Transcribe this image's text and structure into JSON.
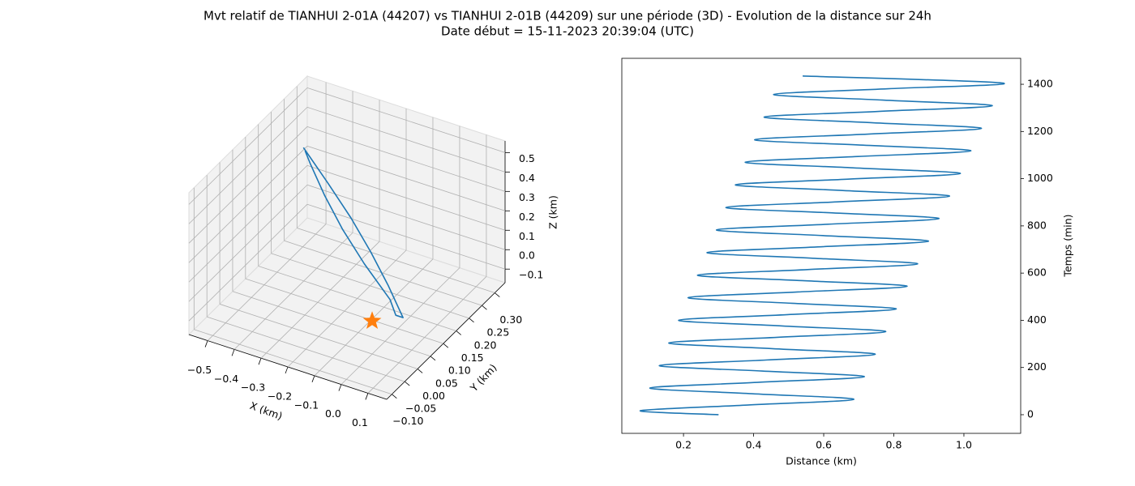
{
  "title": "Mvt relatif de TIANHUI 2-01A (44207) vs TIANHUI 2-01B (44209) sur une période (3D) - Evolution de la distance sur 24h",
  "subtitle": "Date début = 15-11-2023 20:39:04 (UTC)",
  "chart_data": [
    {
      "type": "line3d",
      "color": "#1f77b4",
      "x": [
        -0.438,
        -0.317,
        -0.203,
        -0.1,
        -0.008,
        0.077,
        0.05,
        0.014,
        -0.11,
        -0.221,
        -0.316,
        -0.398,
        -0.43
      ],
      "y": [
        0.188,
        0.158,
        0.129,
        0.099,
        0.07,
        0.04,
        0.04,
        0.055,
        0.084,
        0.114,
        0.144,
        0.173,
        0.186
      ],
      "z": [
        0.45,
        0.36,
        0.27,
        0.18,
        0.09,
        0.0,
        0.0,
        0.045,
        0.135,
        0.225,
        0.315,
        0.405,
        0.44
      ],
      "marker": {
        "x": 0,
        "y": 0,
        "z": 0,
        "color": "#ff7f0e"
      },
      "xlim": [
        -0.57,
        0.17
      ],
      "ylim": [
        -0.12,
        0.34
      ],
      "zlim": [
        -0.17,
        0.56
      ],
      "xticks": [
        {
          "value": -0.5,
          "label": "−0.5"
        },
        {
          "value": -0.4,
          "label": "−0.4"
        },
        {
          "value": -0.3,
          "label": "−0.3"
        },
        {
          "value": -0.2,
          "label": "−0.2"
        },
        {
          "value": -0.1,
          "label": "−0.1"
        },
        {
          "value": 0,
          "label": "0.0"
        },
        0.1
      ],
      "yticks": [
        {
          "value": -0.1,
          "label": "−0.10"
        },
        {
          "value": -0.05,
          "label": "−0.05"
        },
        {
          "value": 0,
          "label": "0.00"
        },
        {
          "value": 0.05,
          "label": "0.05"
        },
        {
          "value": 0.1,
          "label": "0.10"
        },
        {
          "value": 0.15,
          "label": "0.15"
        },
        {
          "value": 0.2,
          "label": "0.20"
        },
        {
          "value": 0.25,
          "label": "0.25"
        },
        {
          "value": 0.3,
          "label": "0.30"
        }
      ],
      "zticks": [
        {
          "value": -0.1,
          "label": "−0.1"
        },
        {
          "value": 0,
          "label": "0.0"
        },
        0.1,
        0.2,
        0.3,
        0.4,
        0.5
      ],
      "xlabel": "X (km)",
      "ylabel": "Y (km)",
      "zlabel": "Z (km)",
      "grid": true
    },
    {
      "type": "line",
      "color": "#1f77b4",
      "x": [
        0.3,
        0.077,
        0.382,
        0.686,
        0.395,
        0.104,
        0.41,
        0.716,
        0.424,
        0.131,
        0.439,
        0.747,
        0.453,
        0.158,
        0.468,
        0.777,
        0.482,
        0.186,
        0.497,
        0.807,
        0.51,
        0.213,
        0.526,
        0.838,
        0.539,
        0.24,
        0.554,
        0.868,
        0.568,
        0.267,
        0.583,
        0.899,
        0.597,
        0.294,
        0.612,
        0.929,
        0.625,
        0.321,
        0.64,
        0.959,
        0.654,
        0.348,
        0.669,
        0.99,
        0.683,
        0.376,
        0.698,
        1.02,
        0.712,
        0.403,
        0.727,
        1.05,
        0.74,
        0.43,
        0.756,
        1.081,
        0.769,
        0.457,
        0.784,
        1.111,
        0.54
      ],
      "values": [
        0,
        17,
        41,
        65,
        89,
        113,
        137,
        161,
        185,
        208,
        232,
        256,
        280,
        304,
        328,
        352,
        376,
        400,
        424,
        448,
        472,
        496,
        520,
        544,
        568,
        591,
        615,
        639,
        663,
        687,
        711,
        735,
        759,
        783,
        807,
        831,
        855,
        878,
        902,
        926,
        950,
        974,
        998,
        1022,
        1046,
        1070,
        1094,
        1118,
        1142,
        1165,
        1189,
        1213,
        1237,
        1261,
        1285,
        1309,
        1333,
        1357,
        1381,
        1405,
        1435
      ],
      "xlim": [
        0.024,
        1.162
      ],
      "ylim": [
        -79,
        1510
      ],
      "xticks": [
        0.2,
        0.4,
        0.6,
        0.8,
        {
          "value": 1,
          "label": "1.0"
        }
      ],
      "yticks": [
        0,
        200,
        400,
        600,
        800,
        1000,
        1200,
        1400
      ],
      "xlabel": "Distance (km)",
      "ylabel": "Temps (min)",
      "yaxis_side": "right"
    }
  ]
}
